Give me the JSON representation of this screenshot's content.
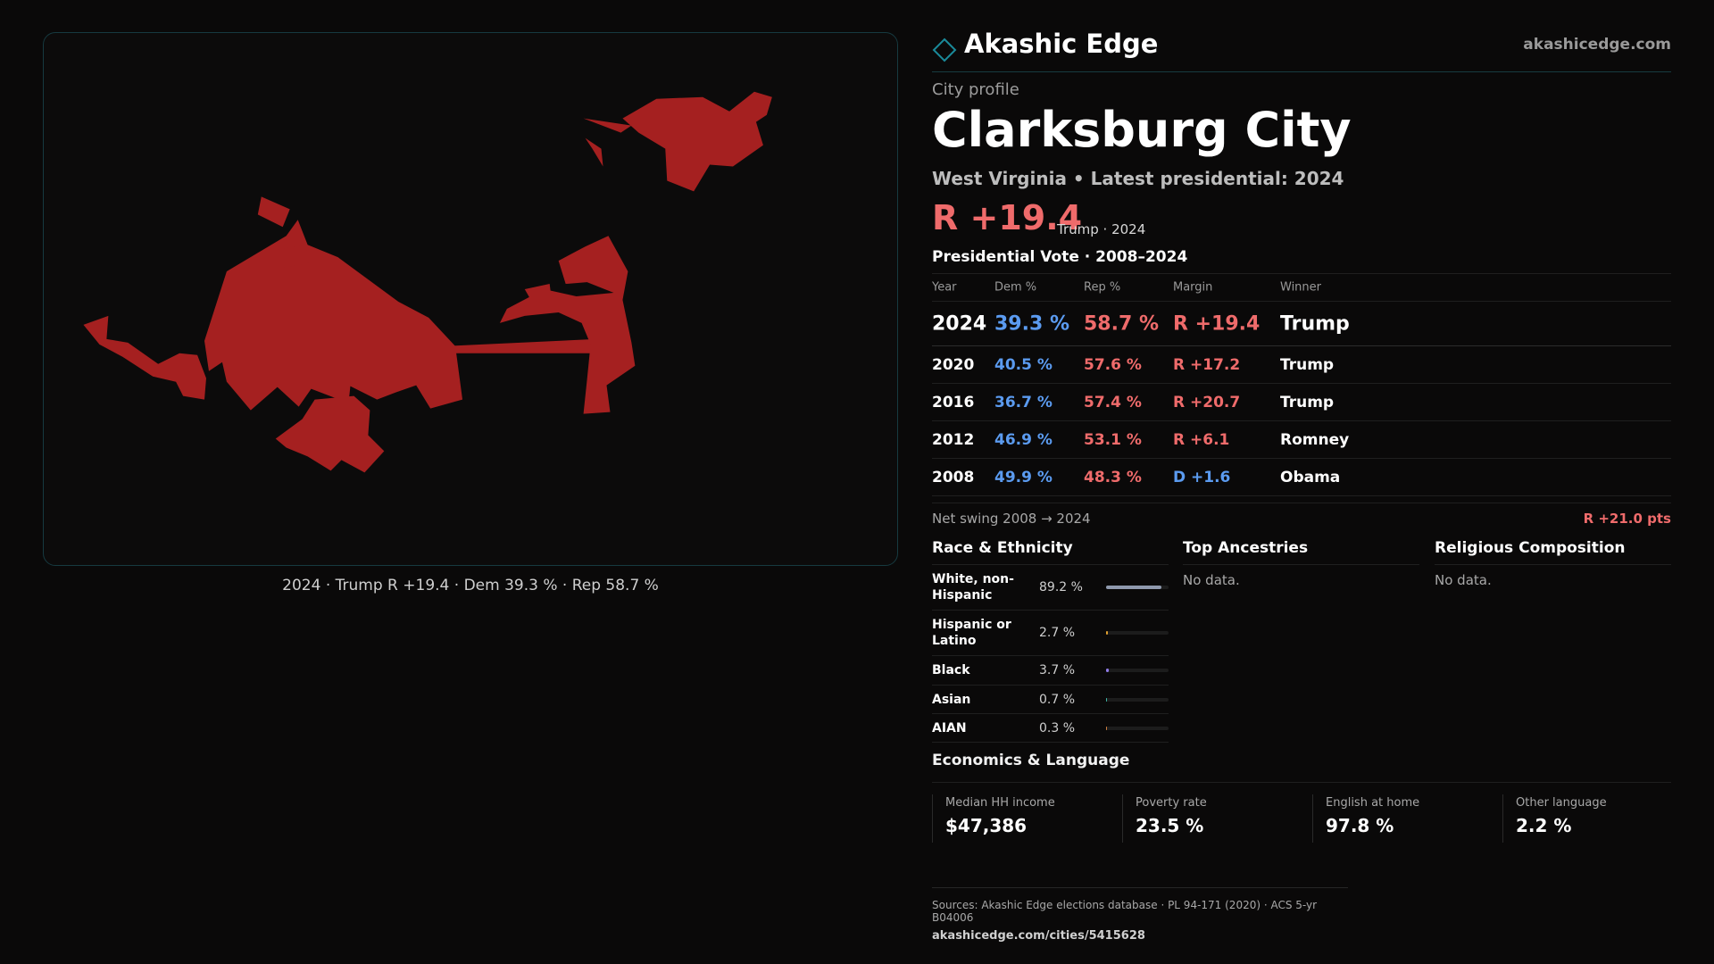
{
  "brand": {
    "name": "Akashic Edge",
    "url": "akashicedge.com",
    "logo_icon": "diamond-outline-icon",
    "accent": "#1a8a9a"
  },
  "map": {
    "caption": "2024 · Trump R +19.4 · Dem 39.3 % · Rep 58.7 %",
    "fill_color": "#a52020"
  },
  "profile": {
    "eyebrow": "City profile",
    "city": "Clarksburg City",
    "subtitle": "West Virginia • Latest presidential: 2024",
    "margin": "R +19.4",
    "margin_note": "Trump · 2024"
  },
  "vote_table": {
    "title": "Presidential Vote · 2008–2024",
    "headers": {
      "year": "Year",
      "dem": "Dem %",
      "rep": "Rep %",
      "margin": "Margin",
      "winner": "Winner"
    },
    "rows": [
      {
        "year": "2024",
        "dem": "39.3 %",
        "rep": "58.7 %",
        "margin": "R +19.4",
        "winner": "Trump",
        "party": "R"
      },
      {
        "year": "2020",
        "dem": "40.5 %",
        "rep": "57.6 %",
        "margin": "R +17.2",
        "winner": "Trump",
        "party": "R"
      },
      {
        "year": "2016",
        "dem": "36.7 %",
        "rep": "57.4 %",
        "margin": "R +20.7",
        "winner": "Trump",
        "party": "R"
      },
      {
        "year": "2012",
        "dem": "46.9 %",
        "rep": "53.1 %",
        "margin": "R +6.1",
        "winner": "Romney",
        "party": "R"
      },
      {
        "year": "2008",
        "dem": "49.9 %",
        "rep": "48.3 %",
        "margin": "D +1.6",
        "winner": "Obama",
        "party": "D"
      }
    ],
    "colors": {
      "dem": "#5b9bf0",
      "rep": "#ef6b6b"
    }
  },
  "swing": {
    "label": "Net swing 2008 → 2024",
    "value": "R +21.0 pts"
  },
  "race": {
    "title": "Race & Ethnicity",
    "rows": [
      {
        "name": "White, non-Hispanic",
        "pct": "89.2 %",
        "value": 89.2,
        "color": "#8f99ad"
      },
      {
        "name": "Hispanic or Latino",
        "pct": "2.7 %",
        "value": 2.7,
        "color": "#e0a030"
      },
      {
        "name": "Black",
        "pct": "3.7 %",
        "value": 3.7,
        "color": "#8f7be8"
      },
      {
        "name": "Asian",
        "pct": "0.7 %",
        "value": 0.7,
        "color": "#3fb8a8"
      },
      {
        "name": "AIAN",
        "pct": "0.3 %",
        "value": 0.3,
        "color": "#d08040"
      }
    ]
  },
  "ancestries": {
    "title": "Top Ancestries",
    "empty": "No data."
  },
  "religion": {
    "title": "Religious Composition",
    "empty": "No data."
  },
  "economics": {
    "title": "Economics & Language",
    "stats": [
      {
        "label": "Median HH income",
        "value": "$47,386"
      },
      {
        "label": "Poverty rate",
        "value": "23.5 %"
      },
      {
        "label": "English at home",
        "value": "97.8 %"
      },
      {
        "label": "Other language",
        "value": "2.2 %"
      }
    ]
  },
  "footer": {
    "sources": "Sources: Akashic Edge elections database · PL 94-171 (2020) · ACS 5-yr B04006",
    "url": "akashicedge.com/cities/5415628"
  }
}
